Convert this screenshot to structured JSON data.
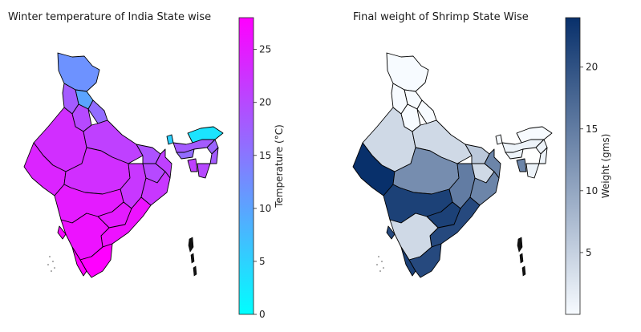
{
  "chart_data": [
    {
      "type": "choropleth-map",
      "title": "Winter temperature of India State wise",
      "colorbar": {
        "label": "Temperature (°C)",
        "ticks": [
          0,
          5,
          10,
          15,
          20,
          25
        ],
        "range": [
          0,
          28
        ],
        "colormap": "cool",
        "colors": [
          "#00ffff",
          "#ff00ff"
        ]
      },
      "regions": [
        {
          "name": "Jammu & Kashmir",
          "value": 12
        },
        {
          "name": "Himachal Pradesh",
          "value": 10
        },
        {
          "name": "Punjab",
          "value": 18
        },
        {
          "name": "Uttarakhand",
          "value": 16
        },
        {
          "name": "Haryana",
          "value": 20
        },
        {
          "name": "Rajasthan",
          "value": 23
        },
        {
          "name": "Uttar Pradesh",
          "value": 21
        },
        {
          "name": "Bihar",
          "value": 19
        },
        {
          "name": "Gujarat",
          "value": 24
        },
        {
          "name": "Madhya Pradesh",
          "value": 23
        },
        {
          "name": "Chhattisgarh",
          "value": 22
        },
        {
          "name": "Jharkhand",
          "value": 20
        },
        {
          "name": "West Bengal",
          "value": 21
        },
        {
          "name": "Odisha",
          "value": 22
        },
        {
          "name": "Maharashtra",
          "value": 25
        },
        {
          "name": "Telangana",
          "value": 25
        },
        {
          "name": "Andhra Pradesh",
          "value": 26
        },
        {
          "name": "Karnataka",
          "value": 26
        },
        {
          "name": "Goa",
          "value": 27
        },
        {
          "name": "Kerala",
          "value": 28
        },
        {
          "name": "Tamil Nadu",
          "value": 28
        },
        {
          "name": "Sikkim",
          "value": 5
        },
        {
          "name": "Arunachal Pradesh",
          "value": 3
        },
        {
          "name": "Assam",
          "value": 18
        },
        {
          "name": "Meghalaya",
          "value": 16
        },
        {
          "name": "Nagaland",
          "value": 17
        },
        {
          "name": "Manipur",
          "value": 18
        },
        {
          "name": "Mizoram",
          "value": 20
        },
        {
          "name": "Tripura",
          "value": 21
        }
      ]
    },
    {
      "type": "choropleth-map",
      "title": "Final weight of Shrimp State Wise",
      "colorbar": {
        "label": "Weight (gms)",
        "ticks": [
          5,
          10,
          15,
          20
        ],
        "range": [
          0,
          24
        ],
        "colormap": "Blues",
        "colors": [
          "#f7fbff",
          "#08306b"
        ]
      },
      "regions": [
        {
          "name": "Jammu & Kashmir",
          "value": 0
        },
        {
          "name": "Himachal Pradesh",
          "value": 0
        },
        {
          "name": "Punjab",
          "value": 0
        },
        {
          "name": "Uttarakhand",
          "value": 0
        },
        {
          "name": "Haryana",
          "value": 0
        },
        {
          "name": "Rajasthan",
          "value": 4
        },
        {
          "name": "Uttar Pradesh",
          "value": 4
        },
        {
          "name": "Bihar",
          "value": 6
        },
        {
          "name": "Gujarat",
          "value": 24
        },
        {
          "name": "Madhya Pradesh",
          "value": 13
        },
        {
          "name": "Chhattisgarh",
          "value": 15
        },
        {
          "name": "Jharkhand",
          "value": 4
        },
        {
          "name": "West Bengal",
          "value": 14
        },
        {
          "name": "Odisha",
          "value": 14
        },
        {
          "name": "Maharashtra",
          "value": 22
        },
        {
          "name": "Telangana",
          "value": 22
        },
        {
          "name": "Andhra Pradesh",
          "value": 21
        },
        {
          "name": "Karnataka",
          "value": 4
        },
        {
          "name": "Goa",
          "value": 21
        },
        {
          "name": "Kerala",
          "value": 22
        },
        {
          "name": "Tamil Nadu",
          "value": 21
        },
        {
          "name": "Sikkim",
          "value": 0
        },
        {
          "name": "Arunachal Pradesh",
          "value": 0
        },
        {
          "name": "Assam",
          "value": 1
        },
        {
          "name": "Meghalaya",
          "value": 1
        },
        {
          "name": "Nagaland",
          "value": 1
        },
        {
          "name": "Manipur",
          "value": 1
        },
        {
          "name": "Mizoram",
          "value": 1
        },
        {
          "name": "Tripura",
          "value": 14
        }
      ]
    }
  ]
}
